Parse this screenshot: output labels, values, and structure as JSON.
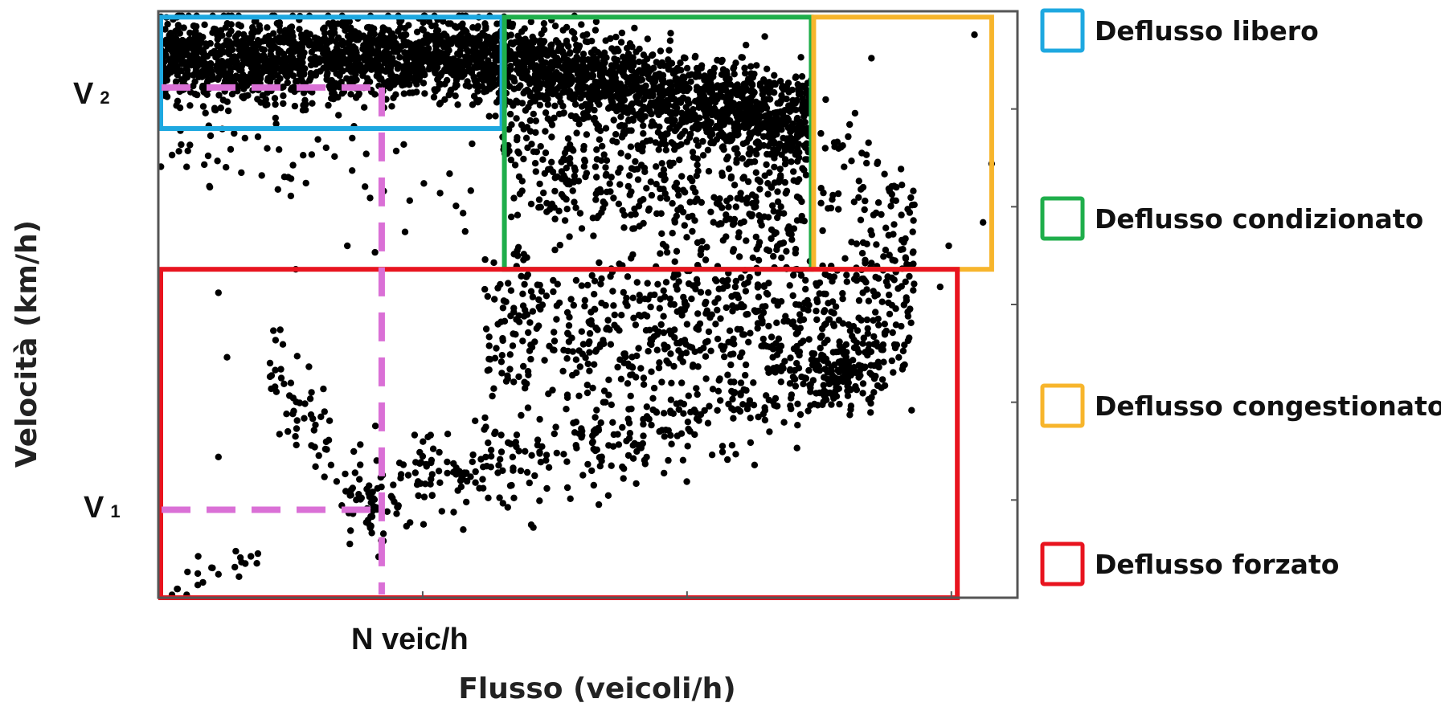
{
  "chart_data": {
    "type": "scatter",
    "title": "",
    "xlabel": "Flusso (veicoli/h)",
    "ylabel": "Velocità (km/h)",
    "xlim": [
      0,
      100
    ],
    "ylim": [
      0,
      100
    ],
    "grid": false,
    "x_tick_labels": [],
    "y_tick_labels": [],
    "reference_lines": {
      "v2_label": "V",
      "v2_sub": "2",
      "v1_label": "V",
      "v1_sub": "1",
      "n_label": "N veic/h",
      "color": "#da70d6",
      "v2": 87,
      "v1": 15,
      "n": 26
    },
    "regions": [
      {
        "name": "Deflusso libero",
        "color": "#1ea8e0",
        "x": [
          0,
          40
        ],
        "y": [
          80,
          99
        ]
      },
      {
        "name": "Deflusso condizionato",
        "color": "#1fae4b",
        "x": [
          40,
          76
        ],
        "y": [
          56,
          99
        ]
      },
      {
        "name": "Deflusso congestionato",
        "color": "#f7b52c",
        "x": [
          76,
          97
        ],
        "y": [
          56,
          99
        ]
      },
      {
        "name": "Deflusso forzato",
        "color": "#e8141f",
        "x": [
          0,
          93
        ],
        "y": [
          0,
          56
        ]
      }
    ],
    "clusters": [
      {
        "kind": "band",
        "n": 1600,
        "x": [
          0,
          40
        ],
        "yc": [
          92,
          92
        ],
        "ys": [
          3.5,
          3.5
        ],
        "seed": 11
      },
      {
        "kind": "band",
        "n": 1500,
        "x": [
          40,
          76
        ],
        "yc": [
          92,
          80
        ],
        "ys": [
          3.5,
          4.5
        ],
        "seed": 12
      },
      {
        "kind": "band",
        "n": 400,
        "x": [
          40,
          75
        ],
        "yc": [
          76,
          64
        ],
        "ys": [
          5,
          6
        ],
        "seed": 13
      },
      {
        "kind": "band",
        "n": 60,
        "x": [
          0,
          40
        ],
        "yc": [
          78,
          72
        ],
        "ys": [
          4,
          6
        ],
        "seed": 14
      },
      {
        "kind": "band",
        "n": 80,
        "x": [
          77,
          88
        ],
        "yc": [
          74,
          62
        ],
        "ys": [
          8,
          6
        ],
        "seed": 15
      },
      {
        "kind": "band",
        "n": 650,
        "x": [
          38,
          88
        ],
        "yc": [
          45,
          50
        ],
        "ys": [
          7,
          6
        ],
        "seed": 16
      },
      {
        "kind": "band",
        "n": 380,
        "x": [
          22,
          75
        ],
        "yc": [
          16,
          36
        ],
        "ys": [
          4,
          5
        ],
        "seed": 17
      },
      {
        "kind": "blob",
        "n": 170,
        "cx": 79,
        "cy": 38,
        "sx": 3,
        "sy": 3,
        "seed": 18
      },
      {
        "kind": "band",
        "n": 70,
        "x": [
          13,
          26
        ],
        "yc": [
          40,
          12
        ],
        "ys": [
          5,
          4
        ],
        "seed": 19
      },
      {
        "kind": "band",
        "n": 20,
        "x": [
          0.5,
          12
        ],
        "yc": [
          1,
          8
        ],
        "ys": [
          1.5,
          2
        ],
        "seed": 20
      }
    ],
    "points": [
      [
        95,
        96
      ],
      [
        83,
        92
      ],
      [
        97,
        74
      ],
      [
        96,
        64
      ],
      [
        88,
        67
      ],
      [
        92,
        60
      ],
      [
        91,
        53
      ],
      [
        82,
        52
      ],
      [
        7,
        52
      ],
      [
        8,
        41
      ],
      [
        7,
        24
      ],
      [
        7,
        4
      ],
      [
        6,
        70
      ],
      [
        22,
        60
      ],
      [
        16,
        56
      ],
      [
        13,
        40
      ]
    ]
  },
  "legend": {
    "items": [
      {
        "label": "Deflusso libero",
        "color": "#1ea8e0"
      },
      {
        "label": "Deflusso condizionato",
        "color": "#1fae4b"
      },
      {
        "label": "Deflusso congestionato",
        "color": "#f7b52c"
      },
      {
        "label": "Deflusso forzato",
        "color": "#e8141f"
      }
    ]
  }
}
